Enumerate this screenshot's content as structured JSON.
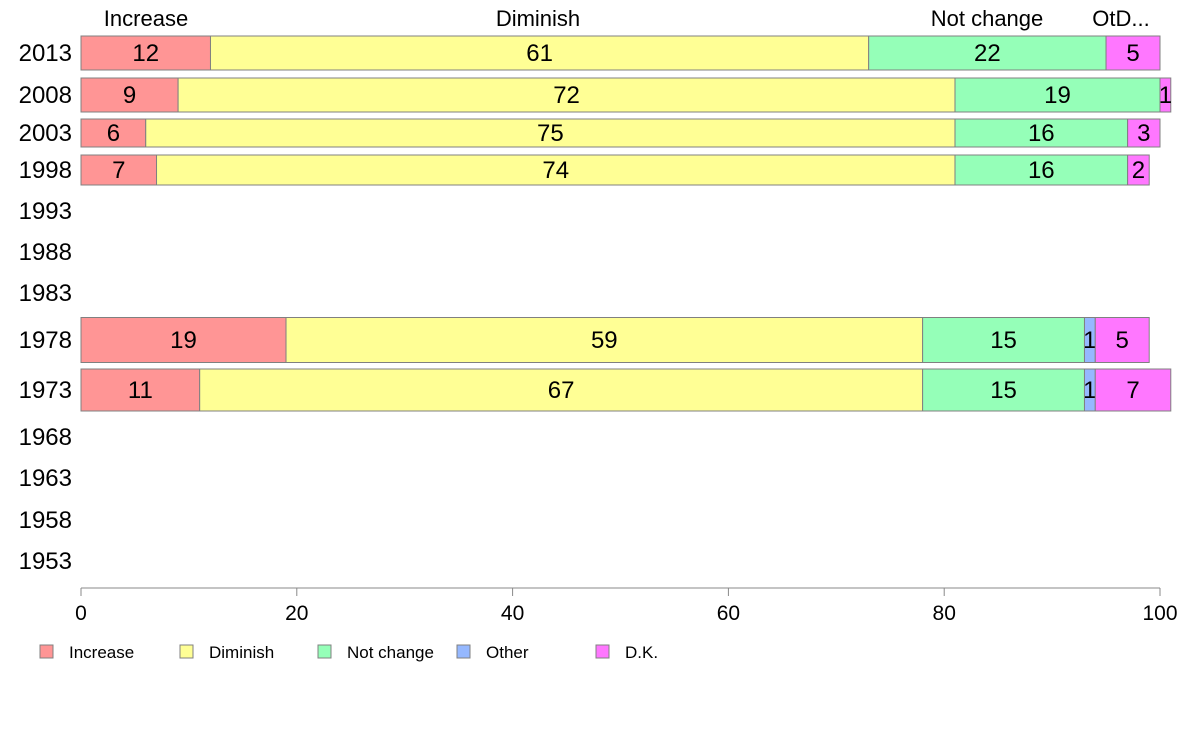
{
  "chart_data": {
    "type": "bar",
    "orientation": "horizontal",
    "stacked": true,
    "categories": [
      "2013",
      "2008",
      "2003",
      "1998",
      "1993",
      "1988",
      "1983",
      "1978",
      "1973",
      "1968",
      "1963",
      "1958",
      "1953"
    ],
    "series": [
      {
        "name": "Increase",
        "color": "#ff9595",
        "values": [
          12,
          9,
          6,
          7,
          null,
          null,
          null,
          19,
          11,
          null,
          null,
          null,
          null
        ]
      },
      {
        "name": "Diminish",
        "color": "#ffff95",
        "values": [
          61,
          72,
          75,
          74,
          null,
          null,
          null,
          59,
          67,
          null,
          null,
          null,
          null
        ]
      },
      {
        "name": "Not change",
        "color": "#95ffb8",
        "values": [
          22,
          19,
          16,
          16,
          null,
          null,
          null,
          15,
          15,
          null,
          null,
          null,
          null
        ]
      },
      {
        "name": "Other",
        "color": "#95b8ff",
        "values": [
          0,
          0,
          0,
          0,
          null,
          null,
          null,
          1,
          1,
          null,
          null,
          null,
          null
        ]
      },
      {
        "name": "D.K.",
        "color": "#ff77ff",
        "values": [
          5,
          1,
          3,
          2,
          null,
          null,
          null,
          5,
          7,
          null,
          null,
          null,
          null
        ]
      }
    ],
    "top_labels": [
      "Increase",
      "Diminish",
      "Not change",
      "OtD..."
    ],
    "xlim": [
      0,
      100
    ],
    "xticks": [
      0,
      20,
      40,
      60,
      80,
      100
    ],
    "grid": false,
    "legend_position": "bottom"
  }
}
